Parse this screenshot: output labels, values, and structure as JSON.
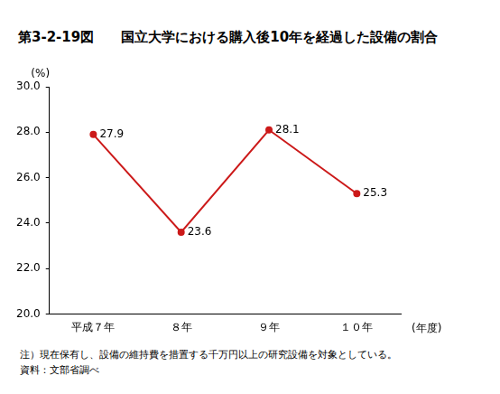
{
  "chart_data": {
    "type": "line",
    "title": "第3-2-19図　　国立大学における購入後10年を経過した設備の割合",
    "y_label": "(%)",
    "x_label": "(年度)",
    "annotations": [
      "注）現在保有し、設備の維持費を措置する千万円以上の研究設備を対象としている。",
      "資料：文部省調べ"
    ],
    "categories": [
      "平成７年",
      "８年",
      "９年",
      "１０年"
    ],
    "values": [
      27.9,
      23.6,
      28.1,
      25.3
    ],
    "color": "#cc1a1a",
    "marker": "circle",
    "data_labels": true,
    "grid": false,
    "ylim": [
      20,
      30
    ],
    "yticks": [
      {
        "value": 20,
        "label": "20.0"
      },
      {
        "value": 22,
        "label": "22.0"
      },
      {
        "value": 24,
        "label": "24.0"
      },
      {
        "value": 26,
        "label": "26.0"
      },
      {
        "value": 28,
        "label": "28.0"
      },
      {
        "value": 30,
        "label": "30.0"
      }
    ]
  }
}
